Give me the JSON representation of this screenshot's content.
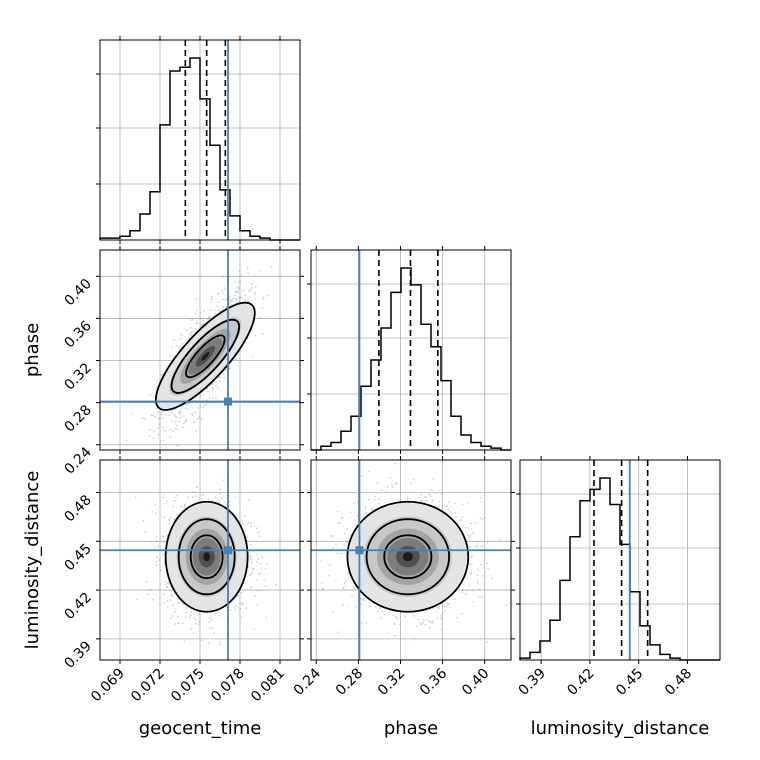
{
  "chart_data": {
    "type": "corner",
    "parameters": [
      "geocent_time",
      "phase",
      "luminosity_distance"
    ],
    "axis_labels": [
      "geocent_time",
      "phase",
      "luminosity_distance"
    ],
    "ranges": {
      "geocent_time": [
        0.0675,
        0.0825
      ],
      "phase": [
        0.235,
        0.425
      ],
      "luminosity_distance": [
        0.377,
        0.5
      ]
    },
    "ticks": {
      "geocent_time": [
        "0.069",
        "0.072",
        "0.075",
        "0.078",
        "0.081"
      ],
      "phase": [
        "0.24",
        "0.28",
        "0.32",
        "0.36",
        "0.40"
      ],
      "luminosity_distance": [
        "0.39",
        "0.42",
        "0.45",
        "0.48"
      ]
    },
    "truths": {
      "geocent_time": 0.0771,
      "phase": 0.281,
      "luminosity_distance": 0.4445
    },
    "quantiles": {
      "geocent_time": [
        0.0739,
        0.0755,
        0.0769
      ],
      "phase": [
        0.2995,
        0.3295,
        0.3555
      ],
      "luminosity_distance": [
        0.4225,
        0.4395,
        0.4555
      ]
    },
    "histograms": {
      "geocent_time": {
        "range": [
          0.0675,
          0.0825
        ],
        "counts": [
          1,
          1,
          2,
          5,
          14,
          26,
          62,
          91,
          93,
          98,
          76,
          51,
          27,
          13,
          5,
          2,
          1,
          0,
          0,
          0
        ]
      },
      "phase": {
        "range": [
          0.235,
          0.425
        ],
        "counts": [
          0,
          2,
          4,
          10,
          18,
          34,
          48,
          65,
          84,
          97,
          88,
          67,
          55,
          37,
          18,
          8,
          4,
          2,
          1,
          0
        ]
      },
      "luminosity_distance": {
        "range": [
          0.377,
          0.5
        ],
        "counts": [
          1,
          4,
          10,
          21,
          42,
          65,
          84,
          90,
          96,
          82,
          61,
          36,
          18,
          8,
          3,
          1,
          0,
          0,
          0,
          0
        ]
      }
    },
    "joint_peaks": {
      "phase_vs_geocent_time": [
        0.0754,
        0.324
      ],
      "luminosity_distance_vs_geocent_time": [
        0.0755,
        0.4405
      ],
      "luminosity_distance_vs_phase": [
        0.327,
        0.4405
      ]
    },
    "grid": true,
    "colors": {
      "truth": "#4682b4",
      "lines": "#000000",
      "grid": "#b0b0b0"
    }
  }
}
